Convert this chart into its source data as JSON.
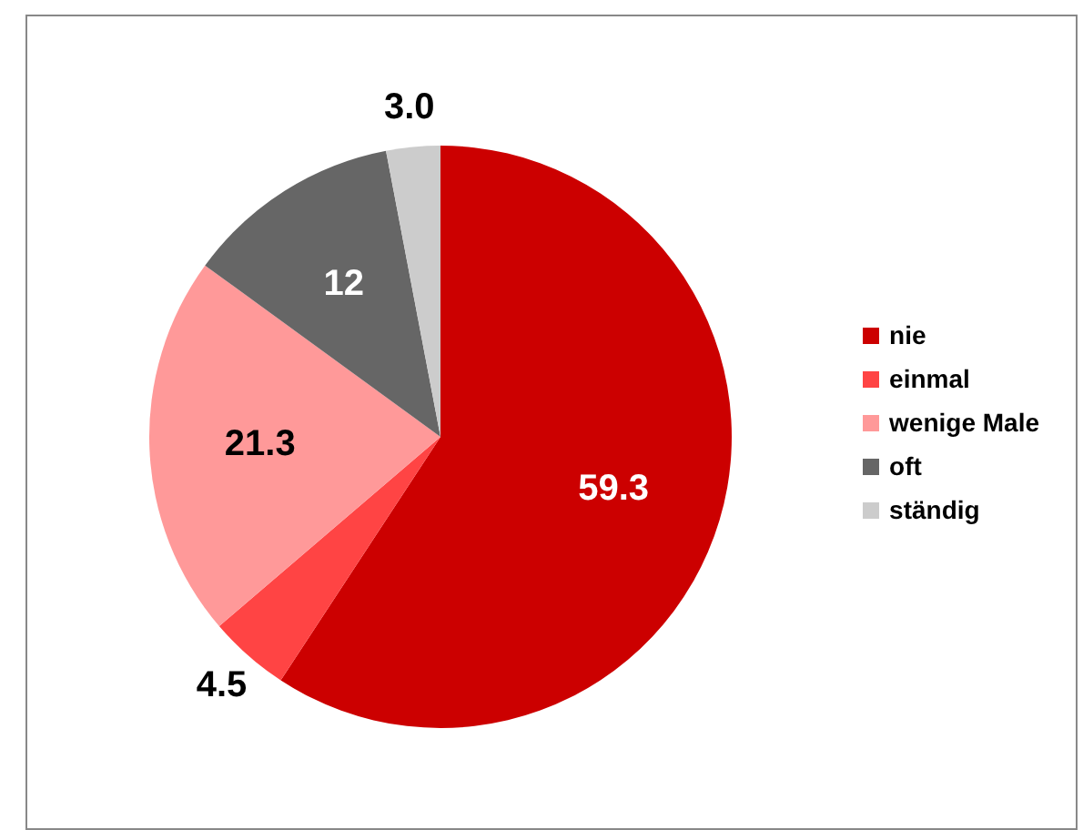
{
  "chart_data": {
    "type": "pie",
    "categories": [
      "nie",
      "einmal",
      "wenige Male",
      "oft",
      "ständig"
    ],
    "values": [
      59.3,
      4.5,
      21.3,
      12,
      3.0
    ],
    "value_labels": [
      "59.3",
      "4.5",
      "21.3",
      "12",
      "3.0"
    ],
    "colors": [
      "#cc0000",
      "#ff4444",
      "#ff9999",
      "#666666",
      "#cccccc"
    ],
    "legend": "right"
  }
}
